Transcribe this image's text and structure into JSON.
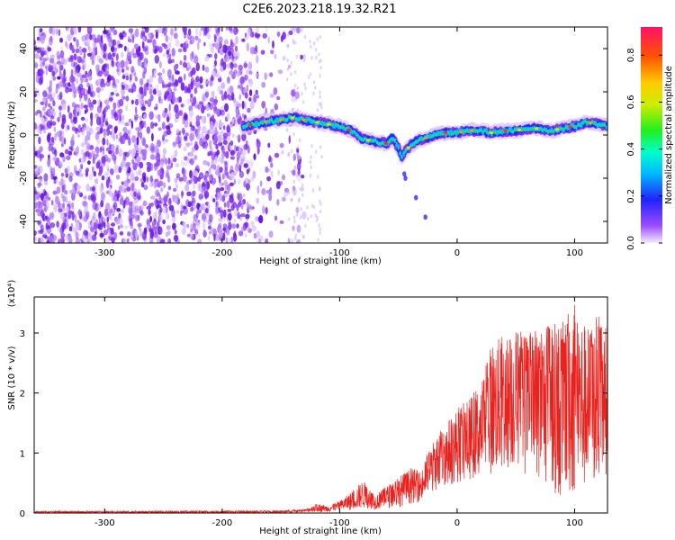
{
  "title": "C2E6.2023.218.19.32.R21",
  "colors": {
    "snr_line": "#e8231f",
    "spectro_noise": "#8a2be2",
    "frame": "#000000"
  },
  "chart_data": [
    {
      "type": "heatmap",
      "xlabel": "Height of straight line (km)",
      "ylabel": "Frequency (Hz)",
      "xlim": [
        -360,
        128
      ],
      "ylim": [
        -50,
        50
      ],
      "xticks": [
        -300,
        -200,
        -100,
        0,
        100
      ],
      "xtick_labels": [
        "-300",
        "-200",
        "-100",
        "0",
        "100"
      ],
      "yticks": [
        -40,
        -20,
        0,
        20,
        40
      ],
      "ytick_labels": [
        "-40",
        "-20",
        "0",
        "20",
        "40"
      ],
      "colorbar": {
        "label": "Normalized spectral amplitude",
        "range": [
          0,
          0.92
        ],
        "ticks": [
          0.0,
          0.2,
          0.4,
          0.6,
          0.8
        ],
        "tick_labels": [
          "0.0",
          "0.2",
          "0.4",
          "0.6",
          "0.8"
        ]
      },
      "noise_region": [
        -360,
        -145
      ],
      "signal_trace": {
        "x": [
          -182,
          -165,
          -150,
          -140,
          -130,
          -120,
          -110,
          -100,
          -90,
          -80,
          -70,
          -60,
          -55,
          -50,
          -47,
          -45,
          -40,
          -35,
          -30,
          -20,
          -10,
          0,
          10,
          20,
          30,
          40,
          50,
          60,
          70,
          80,
          90,
          100,
          110,
          120,
          128
        ],
        "freq": [
          4,
          6,
          7,
          8,
          7,
          6,
          5,
          4,
          2,
          -2,
          -3,
          -4,
          -1,
          -6,
          -10,
          -8,
          -5,
          -3,
          -2,
          0,
          1,
          1,
          2,
          2,
          1,
          2,
          2,
          3,
          3,
          2,
          3,
          4,
          6,
          5,
          4
        ]
      }
    },
    {
      "type": "line",
      "xlabel": "Height of straight line (km)",
      "ylabel": "SNR (10 * v/v)",
      "yunit": "(x10⁴)",
      "xlim": [
        -360,
        128
      ],
      "ylim": [
        0,
        3.6
      ],
      "xticks": [
        -300,
        -200,
        -100,
        0,
        100
      ],
      "xtick_labels": [
        "-300",
        "-200",
        "-100",
        "0",
        "100"
      ],
      "yticks": [
        0,
        1,
        2,
        3
      ],
      "ytick_labels": [
        "0",
        "1",
        "2",
        "3"
      ],
      "envelope": {
        "x": [
          -360,
          -150,
          -130,
          -120,
          -110,
          -100,
          -90,
          -80,
          -70,
          -60,
          -50,
          -40,
          -30,
          -25,
          -20,
          -10,
          0,
          10,
          20,
          30,
          40,
          50,
          60,
          70,
          80,
          90,
          100,
          110,
          120,
          128
        ],
        "max": [
          0.03,
          0.04,
          0.06,
          0.15,
          0.12,
          0.2,
          0.35,
          0.55,
          0.3,
          0.45,
          0.6,
          0.75,
          0.7,
          1.05,
          1.2,
          1.5,
          1.75,
          1.9,
          2.2,
          2.9,
          2.95,
          3.1,
          3.0,
          3.1,
          3.2,
          3.2,
          3.6,
          3.1,
          3.3,
          3.1
        ],
        "min": [
          0.0,
          0.0,
          0.01,
          0.02,
          0.02,
          0.04,
          0.05,
          0.08,
          0.06,
          0.08,
          0.1,
          0.15,
          0.2,
          0.3,
          0.35,
          0.45,
          0.5,
          0.55,
          0.6,
          0.65,
          0.7,
          0.75,
          0.6,
          0.5,
          0.4,
          0.2,
          0.3,
          0.4,
          0.5,
          0.6
        ]
      }
    }
  ]
}
